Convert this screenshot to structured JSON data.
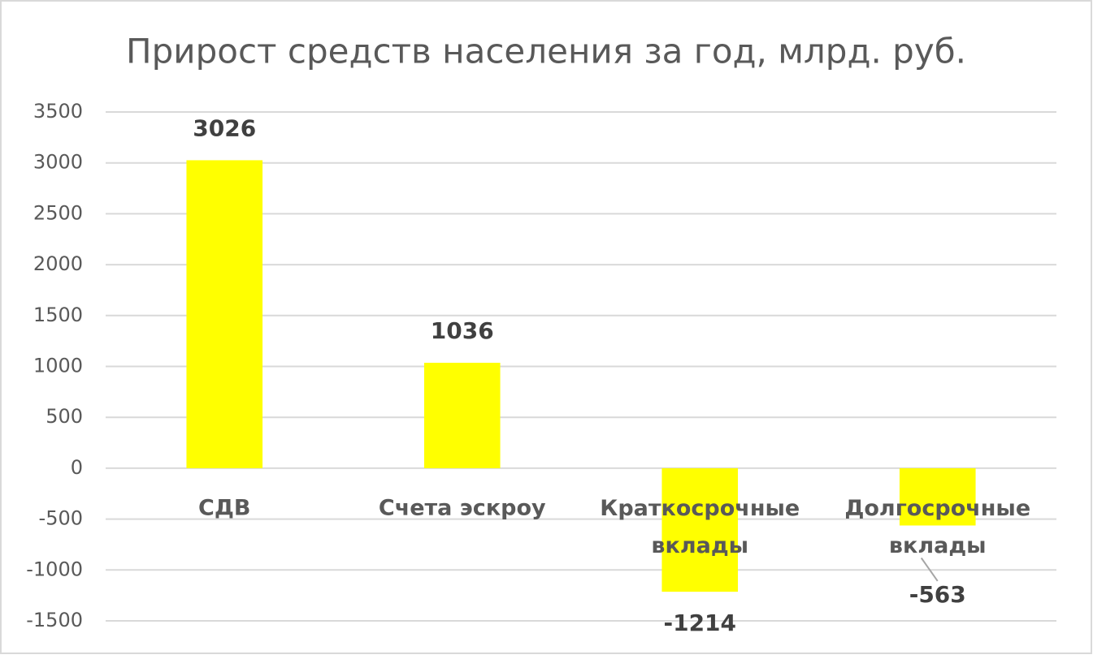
{
  "chart_data": {
    "type": "bar",
    "title": "Прирост средств населения за год, млрд. руб.",
    "categories": [
      "СДВ",
      "Счета эскроу",
      "Краткосрочные вклады",
      "Долгосрочные вклады"
    ],
    "values": [
      3026,
      1036,
      -1214,
      -563
    ],
    "color": "#ffff00",
    "ylim": [
      -1500,
      3500
    ],
    "yticks": [
      -1500,
      -1000,
      -500,
      0,
      500,
      1000,
      1500,
      2000,
      2500,
      3000,
      3500
    ],
    "grid": true
  }
}
